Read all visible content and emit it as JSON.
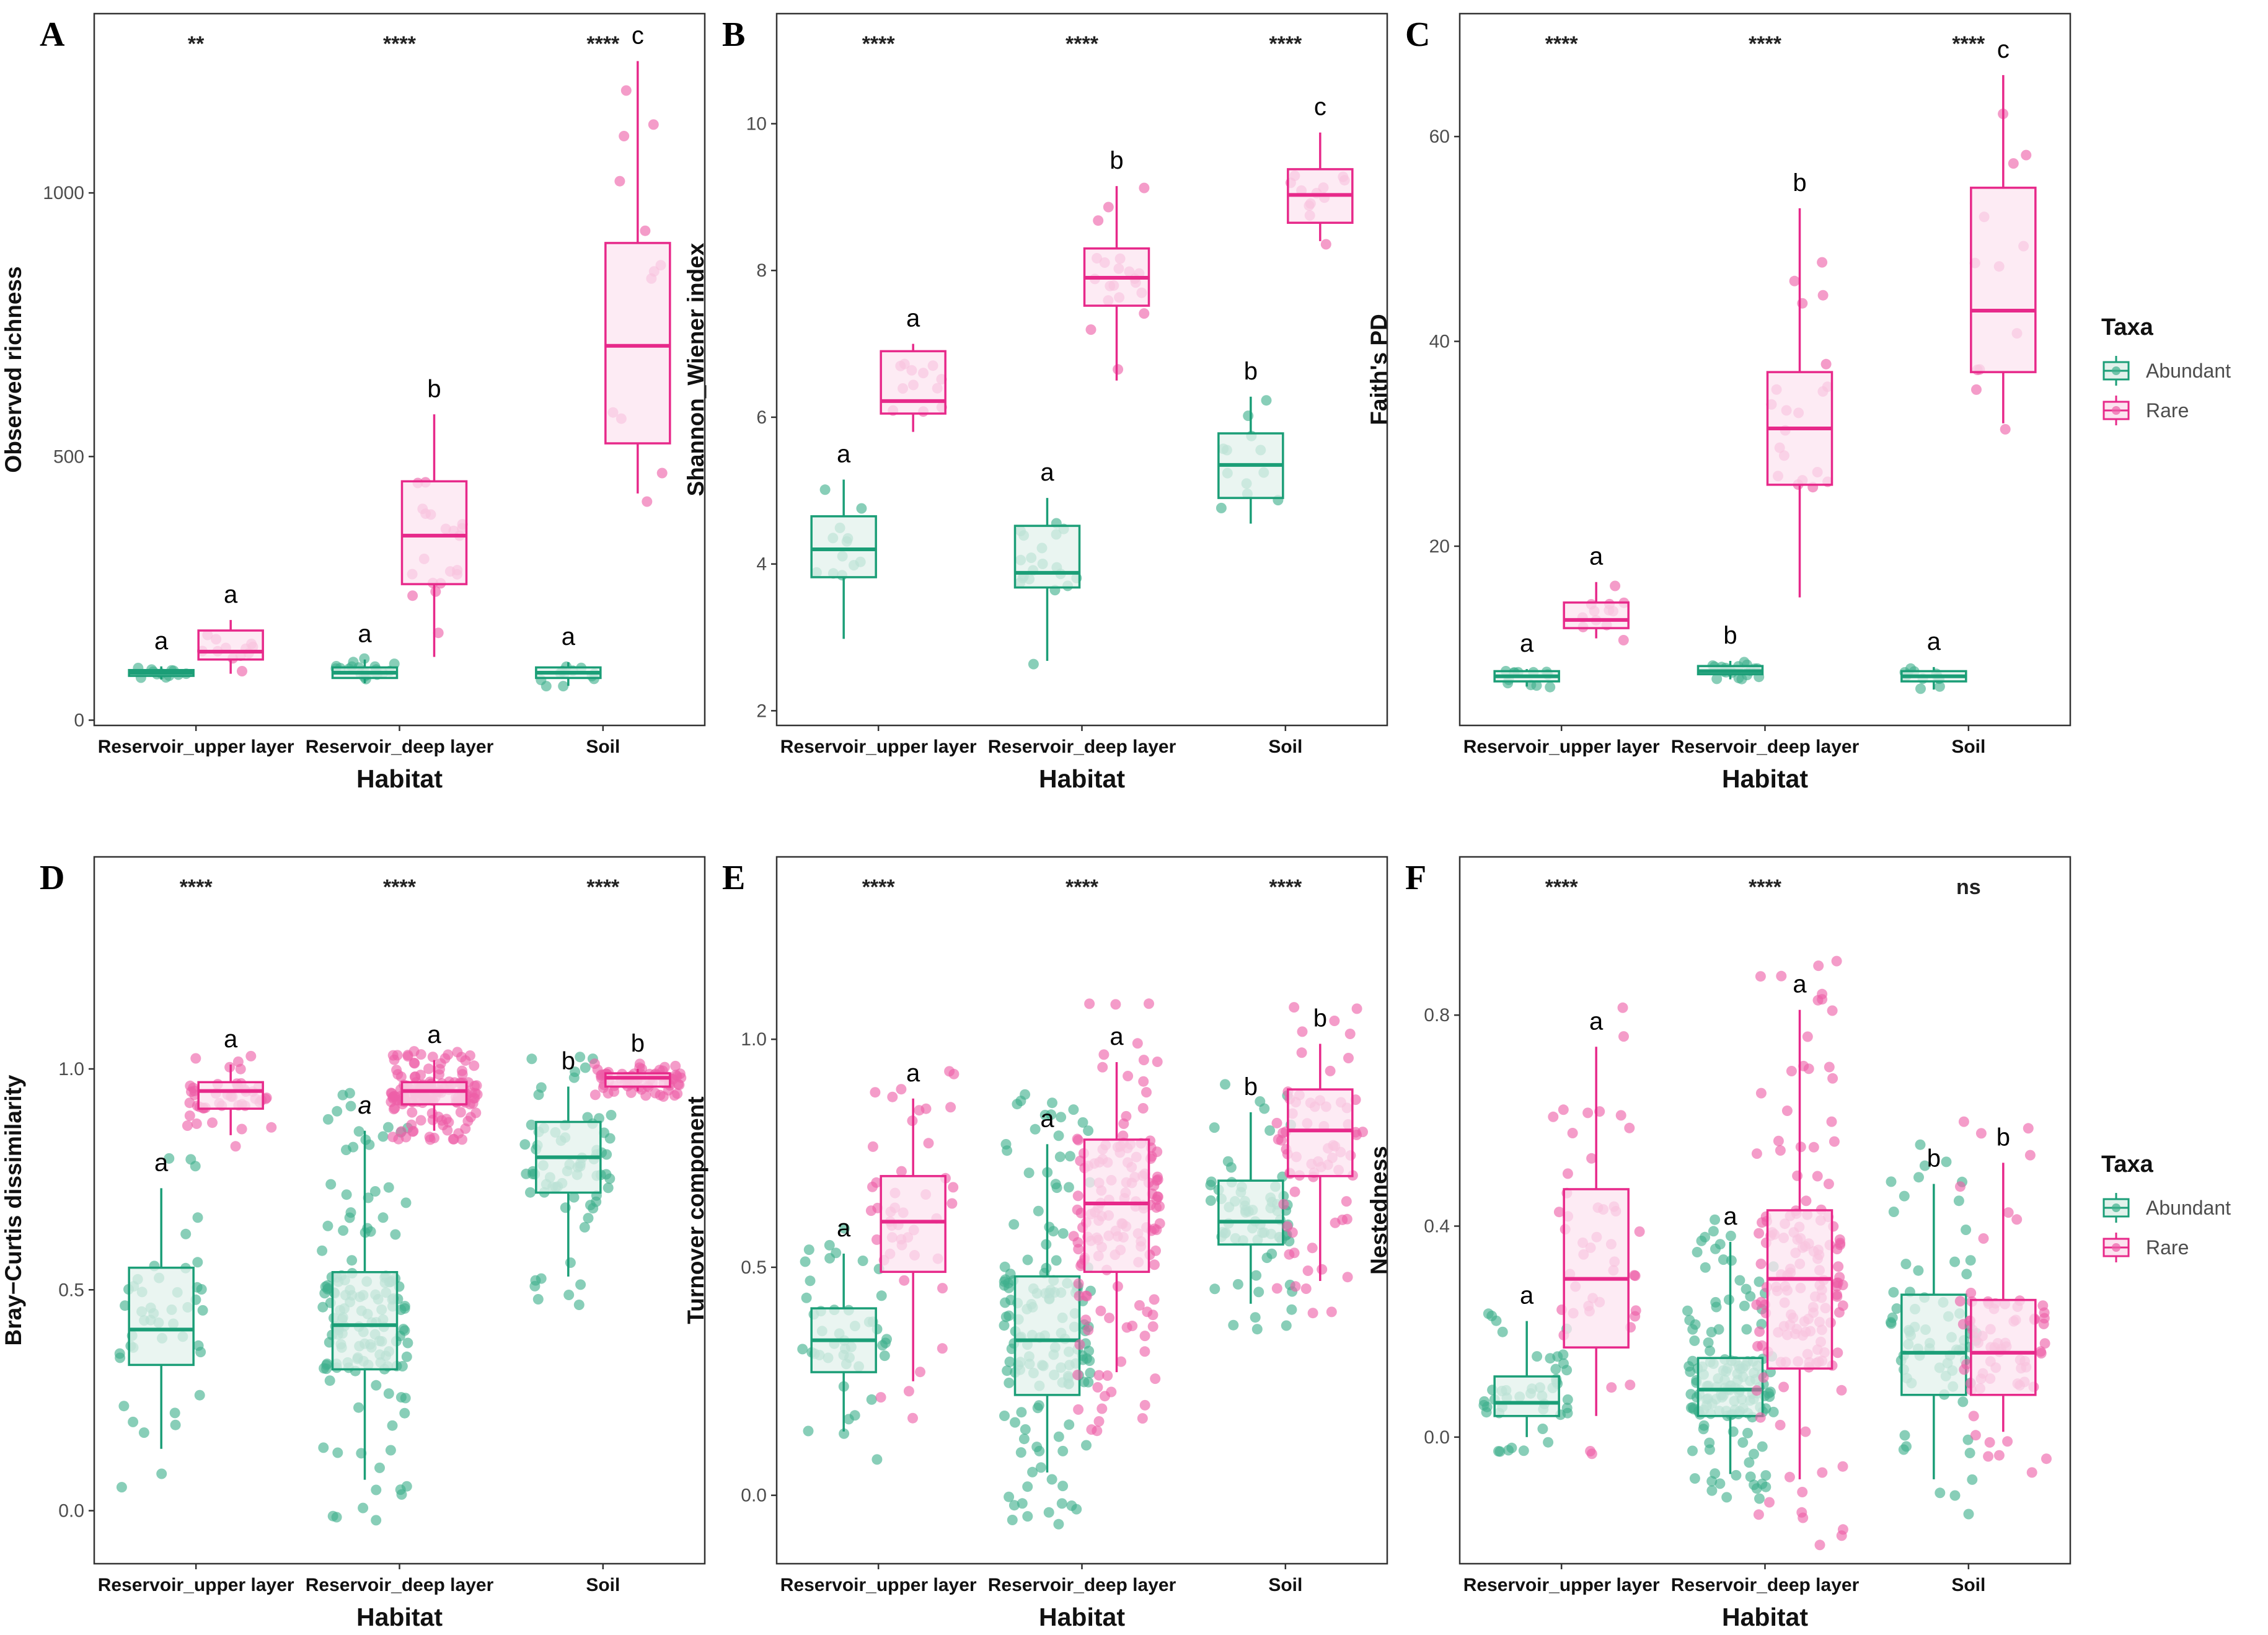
{
  "figure": {
    "legend": {
      "title": "Taxa",
      "items": [
        {
          "label": "Abundant",
          "color": "#1b9e77"
        },
        {
          "label": "Rare",
          "color": "#e7298a"
        }
      ]
    },
    "xlabel": "Habitat",
    "categories": [
      "Reservoir_upper layer",
      "Reservoir_deep layer",
      "Soil"
    ]
  },
  "chart_data": [
    {
      "panel": "A",
      "type": "box",
      "ylabel": "Observed richness",
      "ylim": [
        -10,
        1340
      ],
      "yticks": [
        0,
        500,
        1000
      ],
      "significance": [
        "**",
        "****",
        "****"
      ],
      "groups": [
        {
          "category": "Reservoir_upper layer",
          "taxa": "Abundant",
          "q1": 84,
          "median": 90,
          "q3": 95,
          "min": 77,
          "max": 102,
          "letter": "a",
          "n": 12
        },
        {
          "category": "Reservoir_upper layer",
          "taxa": "Rare",
          "q1": 115,
          "median": 130,
          "q3": 170,
          "min": 88,
          "max": 190,
          "letter": "a",
          "n": 12
        },
        {
          "category": "Reservoir_deep layer",
          "taxa": "Abundant",
          "q1": 80,
          "median": 90,
          "q3": 100,
          "min": 70,
          "max": 115,
          "letter": "a",
          "n": 20
        },
        {
          "category": "Reservoir_deep layer",
          "taxa": "Rare",
          "q1": 258,
          "median": 350,
          "q3": 453,
          "min": 120,
          "max": 580,
          "letter": "b",
          "n": 20
        },
        {
          "category": "Soil",
          "taxa": "Abundant",
          "q1": 80,
          "median": 90,
          "q3": 100,
          "min": 65,
          "max": 110,
          "letter": "a",
          "n": 12
        },
        {
          "category": "Soil",
          "taxa": "Rare",
          "q1": 525,
          "median": 710,
          "q3": 905,
          "min": 430,
          "max": 1250,
          "letter": "c",
          "n": 12
        }
      ]
    },
    {
      "panel": "B",
      "type": "box",
      "ylabel": "Shannon_Wiener index",
      "ylim": [
        1.8,
        11.5
      ],
      "yticks": [
        2,
        4,
        6,
        8,
        10
      ],
      "significance": [
        "****",
        "****",
        "****"
      ],
      "groups": [
        {
          "category": "Reservoir_upper layer",
          "taxa": "Abundant",
          "q1": 3.82,
          "median": 4.2,
          "q3": 4.65,
          "min": 2.98,
          "max": 5.15,
          "letter": "a",
          "n": 12
        },
        {
          "category": "Reservoir_upper layer",
          "taxa": "Rare",
          "q1": 6.05,
          "median": 6.22,
          "q3": 6.9,
          "min": 5.8,
          "max": 7.0,
          "letter": "a",
          "n": 12
        },
        {
          "category": "Reservoir_deep layer",
          "taxa": "Abundant",
          "q1": 3.68,
          "median": 3.88,
          "q3": 4.52,
          "min": 2.68,
          "max": 4.9,
          "letter": "a",
          "n": 20
        },
        {
          "category": "Reservoir_deep layer",
          "taxa": "Rare",
          "q1": 7.52,
          "median": 7.9,
          "q3": 8.3,
          "min": 6.5,
          "max": 9.15,
          "letter": "b",
          "n": 20
        },
        {
          "category": "Soil",
          "taxa": "Abundant",
          "q1": 4.9,
          "median": 5.35,
          "q3": 5.78,
          "min": 4.55,
          "max": 6.28,
          "letter": "b",
          "n": 12
        },
        {
          "category": "Soil",
          "taxa": "Rare",
          "q1": 8.65,
          "median": 9.03,
          "q3": 9.38,
          "min": 8.4,
          "max": 9.88,
          "letter": "c",
          "n": 12
        }
      ]
    },
    {
      "panel": "C",
      "type": "box",
      "ylabel": "Faith's PD",
      "ylim": [
        2.5,
        72
      ],
      "yticks": [
        20,
        40,
        60
      ],
      "significance": [
        "****",
        "****",
        "****"
      ],
      "groups": [
        {
          "category": "Reservoir_upper layer",
          "taxa": "Abundant",
          "q1": 6.8,
          "median": 7.3,
          "q3": 7.8,
          "min": 6.3,
          "max": 8.0,
          "letter": "a",
          "n": 12
        },
        {
          "category": "Reservoir_upper layer",
          "taxa": "Rare",
          "q1": 12.0,
          "median": 12.8,
          "q3": 14.5,
          "min": 11.0,
          "max": 16.5,
          "letter": "a",
          "n": 12
        },
        {
          "category": "Reservoir_deep layer",
          "taxa": "Abundant",
          "q1": 7.5,
          "median": 7.8,
          "q3": 8.3,
          "min": 7.0,
          "max": 8.8,
          "letter": "b",
          "n": 20
        },
        {
          "category": "Reservoir_deep layer",
          "taxa": "Rare",
          "q1": 26.0,
          "median": 31.5,
          "q3": 37.0,
          "min": 15.0,
          "max": 53.0,
          "letter": "b",
          "n": 20
        },
        {
          "category": "Soil",
          "taxa": "Abundant",
          "q1": 6.8,
          "median": 7.3,
          "q3": 7.8,
          "min": 6.0,
          "max": 8.2,
          "letter": "a",
          "n": 12
        },
        {
          "category": "Soil",
          "taxa": "Rare",
          "q1": 37.0,
          "median": 43.0,
          "q3": 55.0,
          "min": 32.0,
          "max": 66.0,
          "letter": "c",
          "n": 12
        }
      ]
    },
    {
      "panel": "D",
      "type": "box",
      "ylabel": "Bray−Curtis dissimilarity",
      "ylim": [
        -0.12,
        1.48
      ],
      "yticks": [
        0.0,
        0.5,
        1.0
      ],
      "significance": [
        "****",
        "****",
        "****"
      ],
      "groups": [
        {
          "category": "Reservoir_upper layer",
          "taxa": "Abundant",
          "q1": 0.33,
          "median": 0.41,
          "q3": 0.55,
          "min": 0.14,
          "max": 0.73,
          "letter": "a",
          "n": 45
        },
        {
          "category": "Reservoir_upper layer",
          "taxa": "Rare",
          "q1": 0.91,
          "median": 0.95,
          "q3": 0.97,
          "min": 0.85,
          "max": 1.01,
          "letter": "a",
          "n": 45
        },
        {
          "category": "Reservoir_deep layer",
          "taxa": "Abundant",
          "q1": 0.32,
          "median": 0.42,
          "q3": 0.54,
          "min": 0.07,
          "max": 0.86,
          "letter": "a",
          "n": 150
        },
        {
          "category": "Reservoir_deep layer",
          "taxa": "Rare",
          "q1": 0.92,
          "median": 0.95,
          "q3": 0.97,
          "min": 0.86,
          "max": 1.02,
          "letter": "a",
          "n": 150
        },
        {
          "category": "Soil",
          "taxa": "Abundant",
          "q1": 0.72,
          "median": 0.8,
          "q3": 0.88,
          "min": 0.53,
          "max": 0.96,
          "letter": "b",
          "n": 70
        },
        {
          "category": "Soil",
          "taxa": "Rare",
          "q1": 0.96,
          "median": 0.98,
          "q3": 0.99,
          "min": 0.95,
          "max": 1.0,
          "letter": "b",
          "n": 70
        }
      ]
    },
    {
      "panel": "E",
      "type": "box",
      "ylabel": "Turnover component",
      "ylim": [
        -0.15,
        1.4
      ],
      "yticks": [
        0.0,
        0.5,
        1.0
      ],
      "significance": [
        "****",
        "****",
        "****"
      ],
      "groups": [
        {
          "category": "Reservoir_upper layer",
          "taxa": "Abundant",
          "q1": 0.27,
          "median": 0.34,
          "q3": 0.41,
          "min": 0.14,
          "max": 0.53,
          "letter": "a",
          "n": 45
        },
        {
          "category": "Reservoir_upper layer",
          "taxa": "Rare",
          "q1": 0.49,
          "median": 0.6,
          "q3": 0.7,
          "min": 0.25,
          "max": 0.87,
          "letter": "a",
          "n": 45
        },
        {
          "category": "Reservoir_deep layer",
          "taxa": "Abundant",
          "q1": 0.22,
          "median": 0.34,
          "q3": 0.48,
          "min": 0.05,
          "max": 0.77,
          "letter": "a",
          "n": 150
        },
        {
          "category": "Reservoir_deep layer",
          "taxa": "Rare",
          "q1": 0.49,
          "median": 0.64,
          "q3": 0.78,
          "min": 0.27,
          "max": 0.95,
          "letter": "a",
          "n": 150
        },
        {
          "category": "Soil",
          "taxa": "Abundant",
          "q1": 0.55,
          "median": 0.6,
          "q3": 0.69,
          "min": 0.42,
          "max": 0.84,
          "letter": "b",
          "n": 70
        },
        {
          "category": "Soil",
          "taxa": "Rare",
          "q1": 0.7,
          "median": 0.8,
          "q3": 0.89,
          "min": 0.47,
          "max": 0.99,
          "letter": "b",
          "n": 70
        }
      ]
    },
    {
      "panel": "F",
      "type": "box",
      "ylabel": "Nestedness",
      "ylim": [
        -0.24,
        1.1
      ],
      "yticks": [
        0.0,
        0.4,
        0.8
      ],
      "significance": [
        "****",
        "****",
        "ns"
      ],
      "groups": [
        {
          "category": "Reservoir_upper layer",
          "taxa": "Abundant",
          "q1": 0.04,
          "median": 0.065,
          "q3": 0.115,
          "min": 0.0,
          "max": 0.22,
          "letter": "a",
          "n": 45
        },
        {
          "category": "Reservoir_upper layer",
          "taxa": "Rare",
          "q1": 0.17,
          "median": 0.3,
          "q3": 0.47,
          "min": 0.04,
          "max": 0.74,
          "letter": "a",
          "n": 45
        },
        {
          "category": "Reservoir_deep layer",
          "taxa": "Abundant",
          "q1": 0.04,
          "median": 0.09,
          "q3": 0.15,
          "min": -0.07,
          "max": 0.37,
          "letter": "a",
          "n": 150
        },
        {
          "category": "Reservoir_deep layer",
          "taxa": "Rare",
          "q1": 0.13,
          "median": 0.3,
          "q3": 0.43,
          "min": -0.08,
          "max": 0.81,
          "letter": "a",
          "n": 150
        },
        {
          "category": "Soil",
          "taxa": "Abundant",
          "q1": 0.08,
          "median": 0.16,
          "q3": 0.27,
          "min": -0.08,
          "max": 0.48,
          "letter": "b",
          "n": 70
        },
        {
          "category": "Soil",
          "taxa": "Rare",
          "q1": 0.08,
          "median": 0.16,
          "q3": 0.26,
          "min": 0.01,
          "max": 0.52,
          "letter": "b",
          "n": 70
        }
      ]
    }
  ]
}
